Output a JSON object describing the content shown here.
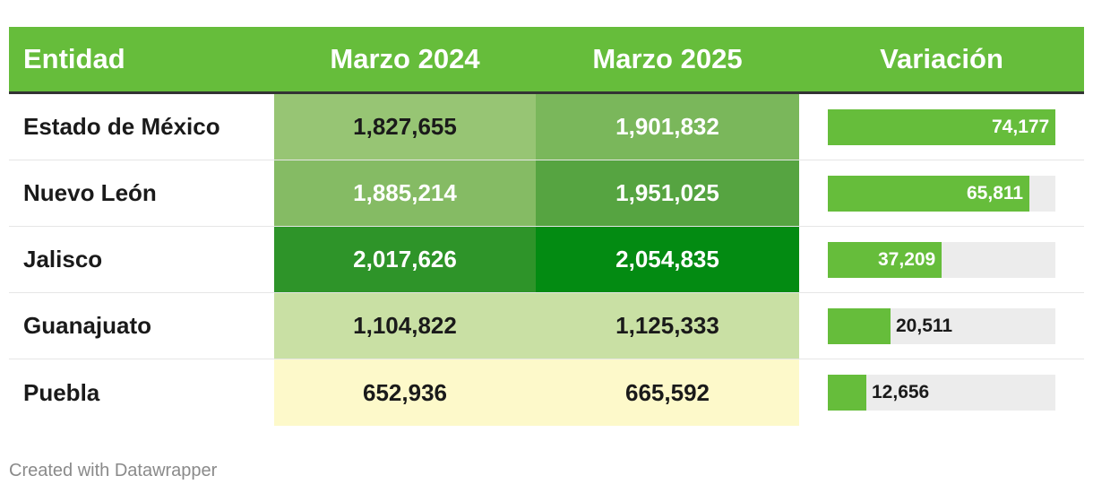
{
  "header": {
    "entity": "Entidad",
    "col1": "Marzo 2024",
    "col2": "Marzo 2025",
    "variation": "Variación"
  },
  "footer": {
    "credit": "Created with Datawrapper"
  },
  "colors": {
    "header_bg": "#66bd3b",
    "bar_fill": "#66bd3b",
    "bar_track": "#ececec"
  },
  "chart_data": {
    "type": "table",
    "columns": [
      "Entidad",
      "Marzo 2024",
      "Marzo 2025",
      "Variación"
    ],
    "rows": [
      {
        "entity": "Estado de México",
        "v2024": "1,827,655",
        "v2025": "1,901,832",
        "variation": "74,177",
        "variation_value": 74177,
        "bg2024": "#97c574",
        "bg2025": "#7ab75b",
        "fg2024": "#1a1a1a",
        "fg2025": "#ffffff"
      },
      {
        "entity": "Nuevo León",
        "v2024": "1,885,214",
        "v2025": "1,951,025",
        "variation": "65,811",
        "variation_value": 65811,
        "bg2024": "#85bb64",
        "bg2025": "#56a441",
        "fg2024": "#ffffff",
        "fg2025": "#ffffff"
      },
      {
        "entity": "Jalisco",
        "v2024": "2,017,626",
        "v2025": "2,054,835",
        "variation": "37,209",
        "variation_value": 37209,
        "bg2024": "#2e9429",
        "bg2025": "#038b12",
        "fg2024": "#ffffff",
        "fg2025": "#ffffff"
      },
      {
        "entity": "Guanajuato",
        "v2024": "1,104,822",
        "v2025": "1,125,333",
        "variation": "20,511",
        "variation_value": 20511,
        "bg2024": "#c9e0a4",
        "bg2025": "#c9e0a4",
        "fg2024": "#1a1a1a",
        "fg2025": "#1a1a1a"
      },
      {
        "entity": "Puebla",
        "v2024": "652,936",
        "v2025": "665,592",
        "variation": "12,656",
        "variation_value": 12656,
        "bg2024": "#fdf9ca",
        "bg2025": "#fdf9ca",
        "fg2024": "#1a1a1a",
        "fg2025": "#1a1a1a"
      }
    ],
    "variation_max": 74177
  }
}
